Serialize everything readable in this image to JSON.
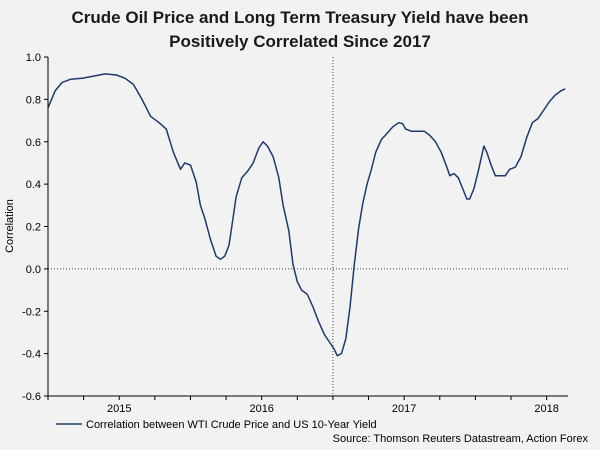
{
  "title_line1": "Crude Oil Price and Long Term Treasury Yield have been",
  "title_line2": "Positively Correlated Since 2017",
  "source": "Source: Thomson Reuters Datastream, Action Forex",
  "colors": {
    "line": "#1f3a6e",
    "zero_line": "#444444",
    "background": "#f2f2f2"
  },
  "chart_data": {
    "type": "line",
    "title": "Crude Oil Price and Long Term Treasury Yield have been Positively Correlated Since 2017",
    "xlabel": "",
    "ylabel": "Correlation",
    "ylim": [
      -0.6,
      1.0
    ],
    "xlim": [
      2014.5,
      2018.15
    ],
    "yticks": [
      1.0,
      0.8,
      0.6,
      0.4,
      0.2,
      0.0,
      -0.2,
      -0.4,
      -0.6
    ],
    "ytick_labels": [
      "1.0",
      "0.8",
      "0.6",
      "0.4",
      "0.2",
      "0.0",
      "-0.2",
      "-0.4",
      "-0.6"
    ],
    "xtick_labels": [
      {
        "label": "2015",
        "x": 2015.0
      },
      {
        "label": "2016",
        "x": 2016.0
      },
      {
        "label": "2017",
        "x": 2017.0
      },
      {
        "label": "2018",
        "x": 2018.0
      }
    ],
    "vertical_marker_x": 2016.5,
    "grid": false,
    "legend_position": "bottom-left",
    "series": [
      {
        "name": "Correlation between WTI Crude Price and US 10-Year Yield",
        "points": [
          [
            2014.5,
            0.76
          ],
          [
            2014.55,
            0.84
          ],
          [
            2014.6,
            0.88
          ],
          [
            2014.66,
            0.895
          ],
          [
            2014.74,
            0.9
          ],
          [
            2014.82,
            0.91
          ],
          [
            2014.9,
            0.92
          ],
          [
            2014.98,
            0.915
          ],
          [
            2015.04,
            0.9
          ],
          [
            2015.1,
            0.87
          ],
          [
            2015.16,
            0.8
          ],
          [
            2015.22,
            0.72
          ],
          [
            2015.28,
            0.69
          ],
          [
            2015.33,
            0.66
          ],
          [
            2015.38,
            0.55
          ],
          [
            2015.43,
            0.47
          ],
          [
            2015.46,
            0.5
          ],
          [
            2015.5,
            0.49
          ],
          [
            2015.54,
            0.41
          ],
          [
            2015.57,
            0.3
          ],
          [
            2015.6,
            0.24
          ],
          [
            2015.64,
            0.14
          ],
          [
            2015.68,
            0.06
          ],
          [
            2015.71,
            0.045
          ],
          [
            2015.74,
            0.06
          ],
          [
            2015.77,
            0.11
          ],
          [
            2015.79,
            0.2
          ],
          [
            2015.82,
            0.34
          ],
          [
            2015.86,
            0.43
          ],
          [
            2015.9,
            0.46
          ],
          [
            2015.94,
            0.5
          ],
          [
            2015.98,
            0.57
          ],
          [
            2016.01,
            0.6
          ],
          [
            2016.04,
            0.58
          ],
          [
            2016.08,
            0.53
          ],
          [
            2016.12,
            0.43
          ],
          [
            2016.15,
            0.3
          ],
          [
            2016.19,
            0.18
          ],
          [
            2016.22,
            0.02
          ],
          [
            2016.25,
            -0.06
          ],
          [
            2016.28,
            -0.1
          ],
          [
            2016.32,
            -0.12
          ],
          [
            2016.36,
            -0.18
          ],
          [
            2016.4,
            -0.25
          ],
          [
            2016.44,
            -0.31
          ],
          [
            2016.48,
            -0.35
          ],
          [
            2016.51,
            -0.38
          ],
          [
            2016.53,
            -0.41
          ],
          [
            2016.56,
            -0.4
          ],
          [
            2016.59,
            -0.33
          ],
          [
            2016.62,
            -0.18
          ],
          [
            2016.65,
            0.02
          ],
          [
            2016.68,
            0.19
          ],
          [
            2016.71,
            0.31
          ],
          [
            2016.74,
            0.4
          ],
          [
            2016.77,
            0.47
          ],
          [
            2016.8,
            0.55
          ],
          [
            2016.84,
            0.61
          ],
          [
            2016.88,
            0.64
          ],
          [
            2016.92,
            0.67
          ],
          [
            2016.96,
            0.69
          ],
          [
            2016.99,
            0.685
          ],
          [
            2017.01,
            0.66
          ],
          [
            2017.05,
            0.65
          ],
          [
            2017.1,
            0.65
          ],
          [
            2017.14,
            0.65
          ],
          [
            2017.18,
            0.63
          ],
          [
            2017.22,
            0.6
          ],
          [
            2017.26,
            0.55
          ],
          [
            2017.3,
            0.48
          ],
          [
            2017.32,
            0.44
          ],
          [
            2017.35,
            0.45
          ],
          [
            2017.38,
            0.43
          ],
          [
            2017.41,
            0.38
          ],
          [
            2017.44,
            0.33
          ],
          [
            2017.46,
            0.33
          ],
          [
            2017.49,
            0.38
          ],
          [
            2017.52,
            0.46
          ],
          [
            2017.55,
            0.55
          ],
          [
            2017.56,
            0.58
          ],
          [
            2017.58,
            0.55
          ],
          [
            2017.61,
            0.49
          ],
          [
            2017.64,
            0.44
          ],
          [
            2017.67,
            0.44
          ],
          [
            2017.71,
            0.44
          ],
          [
            2017.74,
            0.47
          ],
          [
            2017.78,
            0.48
          ],
          [
            2017.82,
            0.53
          ],
          [
            2017.86,
            0.62
          ],
          [
            2017.9,
            0.69
          ],
          [
            2017.94,
            0.71
          ],
          [
            2017.98,
            0.75
          ],
          [
            2018.02,
            0.79
          ],
          [
            2018.06,
            0.82
          ],
          [
            2018.1,
            0.84
          ],
          [
            2018.13,
            0.85
          ]
        ]
      }
    ]
  }
}
